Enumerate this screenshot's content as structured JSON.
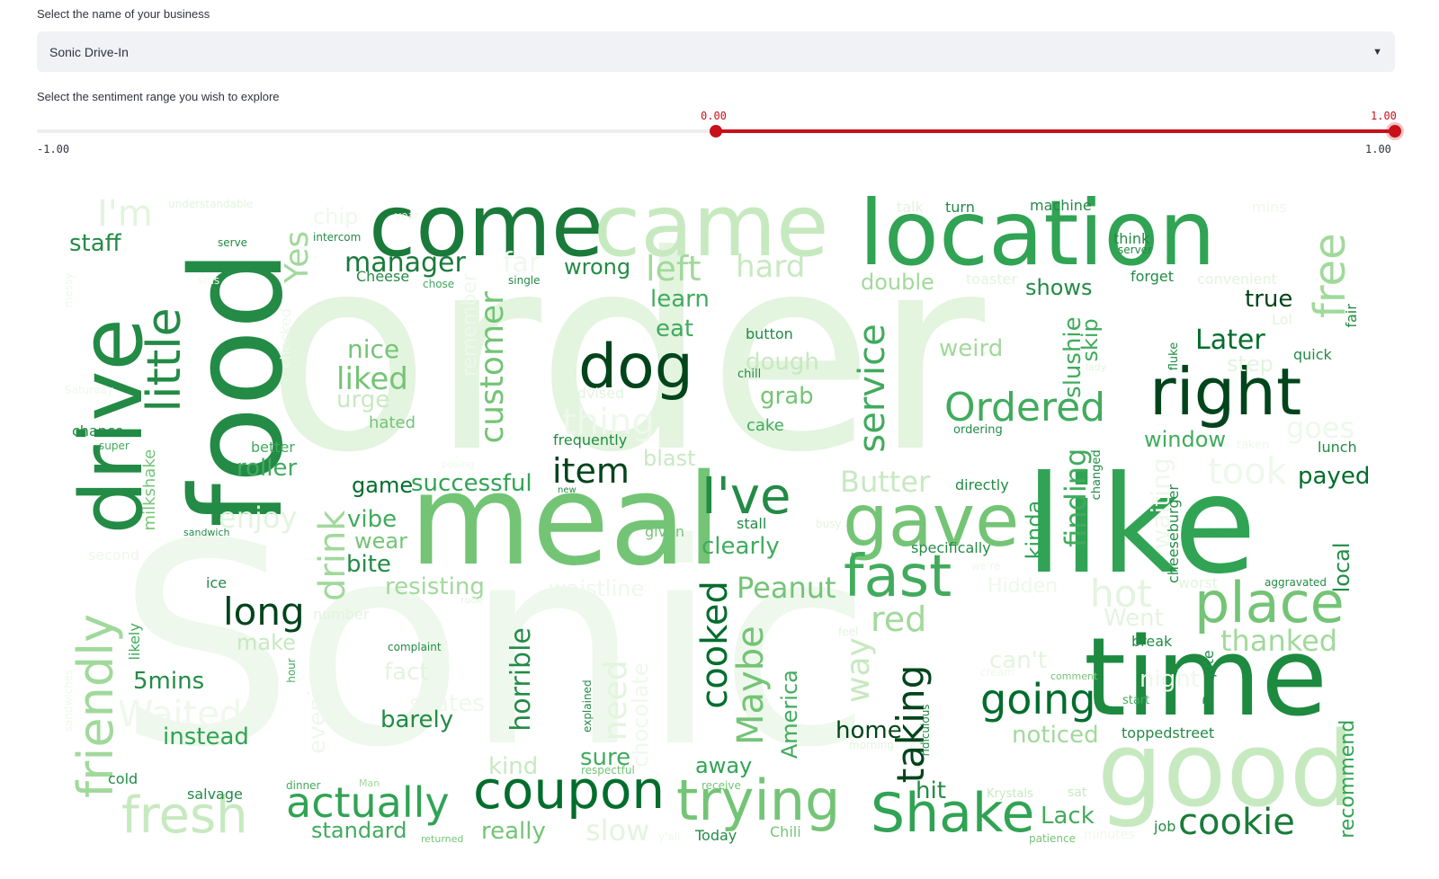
{
  "business_select": {
    "label": "Select the name of your business",
    "value": "Sonic Drive-In",
    "chevron_icon": "chevron-down-icon"
  },
  "sentiment_slider": {
    "label": "Select the sentiment range you wish to explore",
    "min_label": "-1.00",
    "max_label": "1.00",
    "low_value_label": "0.00",
    "high_value_label": "1.00",
    "range_min": -1.0,
    "range_max": 1.0,
    "selected_low": 0.0,
    "selected_high": 1.0,
    "accent_color": "#c8101a"
  },
  "wordcloud": {
    "colormap": "Greens",
    "words": [
      "order",
      "Sonic",
      "meal",
      "like",
      "food",
      "drive",
      "come",
      "came",
      "location",
      "time",
      "good",
      "dog",
      "gave",
      "fast",
      "coupon",
      "trying",
      "Shake",
      "right",
      "place",
      "friendly",
      "fresh",
      "little",
      "I've",
      "Ordered",
      "going",
      "cookie",
      "actually",
      "free",
      "long",
      "manager",
      "customer",
      "service",
      "cooked",
      "taking",
      "Maybe",
      "staff",
      "Yes",
      "left",
      "hard",
      "wrong",
      "item",
      "Later",
      "true",
      "window",
      "payed",
      "took",
      "Butter",
      "game",
      "successful",
      "roller",
      "enjoy",
      "vibe",
      "wear",
      "bite",
      "drink",
      "resisting",
      "Peanut",
      "clearly",
      "red",
      "hot",
      "thanked",
      "Went",
      "waistline",
      "nice",
      "liked",
      "urge",
      "hated",
      "eat",
      "learn",
      "button",
      "dough",
      "grab",
      "cake",
      "chill",
      "weird",
      "shows",
      "double",
      "slushie",
      "skip",
      "finding",
      "waiting",
      "cheeseburger",
      "local",
      "recommend",
      "noticed",
      "home",
      "away",
      "sure",
      "kind",
      "barely",
      "instead",
      "5mins",
      "horrible",
      "need",
      "chocolate",
      "fact",
      "can't",
      "America",
      "way",
      "hit",
      "Lack",
      "standard",
      "really",
      "slow",
      "Today",
      "Chili",
      "patience",
      "job",
      "toppedstreet",
      "Despite",
      "break",
      "start",
      "comment",
      "ridiculous",
      "aggravated",
      "worst",
      "Hidden",
      "specifically",
      "kinda",
      "directly",
      "changed",
      "stall",
      "given",
      "frequently",
      "blast",
      "thing",
      "ordering",
      "fluke",
      "lady",
      "quick",
      "step",
      "lunch",
      "goes",
      "Lol",
      "fair",
      "forget",
      "think",
      "server",
      "convenient",
      "toaster",
      "machine",
      "turn",
      "talk",
      "mins",
      "I'm",
      "understandable",
      "chip",
      "year",
      "intercom",
      "serve",
      "Cheese",
      "chose",
      "single",
      "far",
      "remember",
      "checked",
      "chance",
      "super",
      "better",
      "milkshake",
      "sandwich",
      "second",
      "ice",
      "likely",
      "number",
      "make",
      "complaint",
      "Waited",
      "evenings",
      "hour",
      "sandwiches",
      "cold",
      "salvage",
      "dinner",
      "Man",
      "returned",
      "respectful",
      "explained",
      "skates",
      "receive",
      "Krystals",
      "sat",
      "minutes",
      "cream",
      "morning",
      "feel",
      "night",
      "taken",
      "we're",
      "busy",
      "rude",
      "posing",
      "new",
      "advised",
      "Saturday",
      "messy",
      "sms",
      "y'all"
    ]
  }
}
